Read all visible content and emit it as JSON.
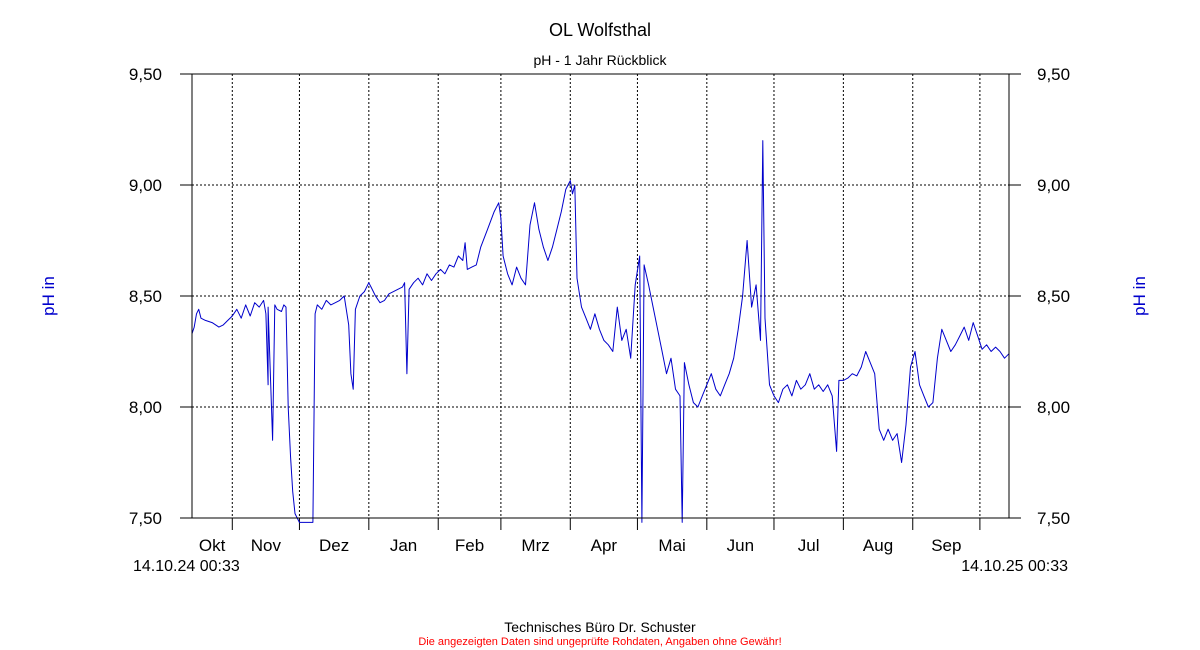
{
  "chart_data": {
    "type": "line",
    "title": "OL Wolfsthal",
    "subtitle": "pH - 1 Jahr Rückblick",
    "ylabel_left": "pH in",
    "ylabel_right": "pH in",
    "ylim": [
      7.5,
      9.5
    ],
    "yticks": [
      7.5,
      8.0,
      8.5,
      9.0,
      9.5
    ],
    "yticklabels": [
      "7,50",
      "8,00",
      "8,50",
      "9,00",
      "9,50"
    ],
    "grid": true,
    "start_label": "14.10.24 00:33",
    "end_label": "14.10.25 00:33",
    "months": [
      "Okt",
      "Nov",
      "Dez",
      "Jan",
      "Feb",
      "Mrz",
      "Apr",
      "Mai",
      "Jun",
      "Jul",
      "Aug",
      "Sep"
    ],
    "month_boundaries": [
      "2024-11-01",
      "2024-12-01",
      "2025-01-01",
      "2025-02-01",
      "2025-03-01",
      "2025-04-01",
      "2025-05-01",
      "2025-06-01",
      "2025-07-01",
      "2025-08-01",
      "2025-09-01",
      "2025-10-01"
    ],
    "x_range": [
      "2024-10-14",
      "2025-10-14"
    ],
    "series": [
      {
        "color": "#0000cc",
        "points": [
          [
            "2024-10-14",
            8.33
          ],
          [
            "2024-10-15",
            8.36
          ],
          [
            "2024-10-16",
            8.42
          ],
          [
            "2024-10-17",
            8.44
          ],
          [
            "2024-10-18",
            8.4
          ],
          [
            "2024-10-20",
            8.39
          ],
          [
            "2024-10-23",
            8.38
          ],
          [
            "2024-10-26",
            8.36
          ],
          [
            "2024-10-28",
            8.37
          ],
          [
            "2024-10-30",
            8.39
          ],
          [
            "2024-11-01",
            8.41
          ],
          [
            "2024-11-03",
            8.44
          ],
          [
            "2024-11-05",
            8.4
          ],
          [
            "2024-11-07",
            8.46
          ],
          [
            "2024-11-09",
            8.41
          ],
          [
            "2024-11-11",
            8.47
          ],
          [
            "2024-11-13",
            8.45
          ],
          [
            "2024-11-15",
            8.48
          ],
          [
            "2024-11-16",
            8.42
          ],
          [
            "2024-11-17",
            8.1
          ],
          [
            "2024-11-17",
            8.45
          ],
          [
            "2024-11-19",
            7.85
          ],
          [
            "2024-11-20",
            8.46
          ],
          [
            "2024-11-21",
            8.44
          ],
          [
            "2024-11-23",
            8.43
          ],
          [
            "2024-11-24",
            8.46
          ],
          [
            "2024-11-25",
            8.45
          ],
          [
            "2024-11-26",
            8.0
          ],
          [
            "2024-11-27",
            7.78
          ],
          [
            "2024-11-28",
            7.62
          ],
          [
            "2024-11-29",
            7.52
          ],
          [
            "2024-12-01",
            7.48
          ],
          [
            "2024-12-07",
            7.48
          ],
          [
            "2024-12-08",
            8.42
          ],
          [
            "2024-12-09",
            8.46
          ],
          [
            "2024-12-11",
            8.44
          ],
          [
            "2024-12-13",
            8.48
          ],
          [
            "2024-12-15",
            8.46
          ],
          [
            "2024-12-17",
            8.47
          ],
          [
            "2024-12-19",
            8.48
          ],
          [
            "2024-12-21",
            8.5
          ],
          [
            "2024-12-23",
            8.37
          ],
          [
            "2024-12-24",
            8.15
          ],
          [
            "2024-12-25",
            8.08
          ],
          [
            "2024-12-26",
            8.44
          ],
          [
            "2024-12-28",
            8.5
          ],
          [
            "2024-12-30",
            8.52
          ],
          [
            "2025-01-01",
            8.56
          ],
          [
            "2025-01-02",
            8.54
          ],
          [
            "2025-01-04",
            8.5
          ],
          [
            "2025-01-06",
            8.47
          ],
          [
            "2025-01-08",
            8.48
          ],
          [
            "2025-01-10",
            8.51
          ],
          [
            "2025-01-12",
            8.52
          ],
          [
            "2025-01-14",
            8.53
          ],
          [
            "2025-01-16",
            8.54
          ],
          [
            "2025-01-17",
            8.56
          ],
          [
            "2025-01-18",
            8.15
          ],
          [
            "2025-01-19",
            8.53
          ],
          [
            "2025-01-21",
            8.56
          ],
          [
            "2025-01-23",
            8.58
          ],
          [
            "2025-01-25",
            8.55
          ],
          [
            "2025-01-27",
            8.6
          ],
          [
            "2025-01-29",
            8.57
          ],
          [
            "2025-01-31",
            8.6
          ],
          [
            "2025-02-02",
            8.62
          ],
          [
            "2025-02-04",
            8.6
          ],
          [
            "2025-02-06",
            8.64
          ],
          [
            "2025-02-08",
            8.63
          ],
          [
            "2025-02-10",
            8.68
          ],
          [
            "2025-02-12",
            8.66
          ],
          [
            "2025-02-13",
            8.74
          ],
          [
            "2025-02-14",
            8.62
          ],
          [
            "2025-02-16",
            8.63
          ],
          [
            "2025-02-18",
            8.64
          ],
          [
            "2025-02-20",
            8.72
          ],
          [
            "2025-02-23",
            8.8
          ],
          [
            "2025-02-26",
            8.88
          ],
          [
            "2025-02-28",
            8.92
          ],
          [
            "2025-03-01",
            8.85
          ],
          [
            "2025-03-02",
            8.68
          ],
          [
            "2025-03-04",
            8.6
          ],
          [
            "2025-03-06",
            8.55
          ],
          [
            "2025-03-08",
            8.63
          ],
          [
            "2025-03-10",
            8.58
          ],
          [
            "2025-03-12",
            8.55
          ],
          [
            "2025-03-14",
            8.82
          ],
          [
            "2025-03-16",
            8.92
          ],
          [
            "2025-03-18",
            8.8
          ],
          [
            "2025-03-20",
            8.72
          ],
          [
            "2025-03-22",
            8.66
          ],
          [
            "2025-03-24",
            8.72
          ],
          [
            "2025-03-26",
            8.8
          ],
          [
            "2025-03-28",
            8.88
          ],
          [
            "2025-03-30",
            8.98
          ],
          [
            "2025-04-01",
            9.02
          ],
          [
            "2025-04-02",
            8.96
          ],
          [
            "2025-04-03",
            9.0
          ],
          [
            "2025-04-04",
            8.58
          ],
          [
            "2025-04-06",
            8.45
          ],
          [
            "2025-04-08",
            8.4
          ],
          [
            "2025-04-10",
            8.35
          ],
          [
            "2025-04-12",
            8.42
          ],
          [
            "2025-04-14",
            8.35
          ],
          [
            "2025-04-16",
            8.3
          ],
          [
            "2025-04-18",
            8.28
          ],
          [
            "2025-04-20",
            8.25
          ],
          [
            "2025-04-22",
            8.45
          ],
          [
            "2025-04-24",
            8.3
          ],
          [
            "2025-04-26",
            8.35
          ],
          [
            "2025-04-28",
            8.22
          ],
          [
            "2025-04-30",
            8.55
          ],
          [
            "2025-05-02",
            8.68
          ],
          [
            "2025-05-03",
            7.48
          ],
          [
            "2025-05-04",
            8.64
          ],
          [
            "2025-05-06",
            8.55
          ],
          [
            "2025-05-08",
            8.45
          ],
          [
            "2025-05-10",
            8.35
          ],
          [
            "2025-05-12",
            8.25
          ],
          [
            "2025-05-14",
            8.15
          ],
          [
            "2025-05-16",
            8.22
          ],
          [
            "2025-05-18",
            8.08
          ],
          [
            "2025-05-20",
            8.05
          ],
          [
            "2025-05-21",
            7.48
          ],
          [
            "2025-05-22",
            8.2
          ],
          [
            "2025-05-24",
            8.1
          ],
          [
            "2025-05-26",
            8.02
          ],
          [
            "2025-05-28",
            8.0
          ],
          [
            "2025-05-30",
            8.05
          ],
          [
            "2025-06-01",
            8.1
          ],
          [
            "2025-06-03",
            8.15
          ],
          [
            "2025-06-05",
            8.08
          ],
          [
            "2025-06-07",
            8.05
          ],
          [
            "2025-06-09",
            8.1
          ],
          [
            "2025-06-11",
            8.15
          ],
          [
            "2025-06-13",
            8.22
          ],
          [
            "2025-06-15",
            8.35
          ],
          [
            "2025-06-17",
            8.5
          ],
          [
            "2025-06-19",
            8.75
          ],
          [
            "2025-06-21",
            8.45
          ],
          [
            "2025-06-23",
            8.55
          ],
          [
            "2025-06-25",
            8.3
          ],
          [
            "2025-06-26",
            9.2
          ],
          [
            "2025-06-27",
            8.4
          ],
          [
            "2025-06-29",
            8.1
          ],
          [
            "2025-07-01",
            8.05
          ],
          [
            "2025-07-03",
            8.02
          ],
          [
            "2025-07-05",
            8.08
          ],
          [
            "2025-07-07",
            8.1
          ],
          [
            "2025-07-09",
            8.05
          ],
          [
            "2025-07-11",
            8.12
          ],
          [
            "2025-07-13",
            8.08
          ],
          [
            "2025-07-15",
            8.1
          ],
          [
            "2025-07-17",
            8.15
          ],
          [
            "2025-07-19",
            8.08
          ],
          [
            "2025-07-21",
            8.1
          ],
          [
            "2025-07-23",
            8.07
          ],
          [
            "2025-07-25",
            8.1
          ],
          [
            "2025-07-27",
            8.05
          ],
          [
            "2025-07-29",
            7.8
          ],
          [
            "2025-07-30",
            8.12
          ],
          [
            "2025-08-01",
            8.12
          ],
          [
            "2025-08-03",
            8.13
          ],
          [
            "2025-08-05",
            8.15
          ],
          [
            "2025-08-07",
            8.14
          ],
          [
            "2025-08-09",
            8.18
          ],
          [
            "2025-08-11",
            8.25
          ],
          [
            "2025-08-13",
            8.2
          ],
          [
            "2025-08-15",
            8.15
          ],
          [
            "2025-08-17",
            7.9
          ],
          [
            "2025-08-19",
            7.85
          ],
          [
            "2025-08-21",
            7.9
          ],
          [
            "2025-08-23",
            7.85
          ],
          [
            "2025-08-25",
            7.88
          ],
          [
            "2025-08-27",
            7.75
          ],
          [
            "2025-08-29",
            7.92
          ],
          [
            "2025-08-31",
            8.18
          ],
          [
            "2025-09-02",
            8.25
          ],
          [
            "2025-09-04",
            8.1
          ],
          [
            "2025-09-06",
            8.05
          ],
          [
            "2025-09-08",
            8.0
          ],
          [
            "2025-09-10",
            8.02
          ],
          [
            "2025-09-12",
            8.22
          ],
          [
            "2025-09-14",
            8.35
          ],
          [
            "2025-09-16",
            8.3
          ],
          [
            "2025-09-18",
            8.25
          ],
          [
            "2025-09-20",
            8.28
          ],
          [
            "2025-09-22",
            8.32
          ],
          [
            "2025-09-24",
            8.36
          ],
          [
            "2025-09-26",
            8.3
          ],
          [
            "2025-09-28",
            8.38
          ],
          [
            "2025-09-30",
            8.32
          ],
          [
            "2025-10-02",
            8.26
          ],
          [
            "2025-10-04",
            8.28
          ],
          [
            "2025-10-06",
            8.25
          ],
          [
            "2025-10-08",
            8.27
          ],
          [
            "2025-10-10",
            8.25
          ],
          [
            "2025-10-12",
            8.22
          ],
          [
            "2025-10-14",
            8.24
          ]
        ]
      }
    ]
  },
  "footer": {
    "company": "Technisches Büro Dr. Schuster",
    "disclaimer": "Die angezeigten Daten sind ungeprüfte Rohdaten, Angaben ohne Gewähr!"
  },
  "colors": {
    "series": "#0000cc",
    "disclaimer": "#ff0000",
    "axis_label": "#0000cc"
  }
}
